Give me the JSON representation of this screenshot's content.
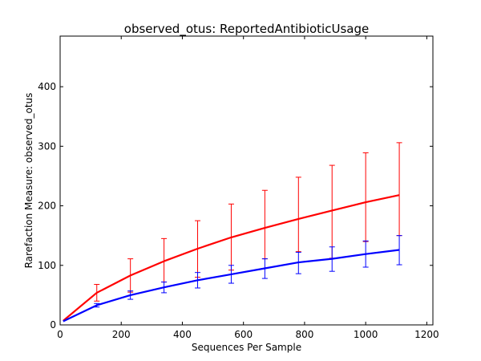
{
  "chart_data": {
    "type": "line",
    "title": "observed_otus: ReportedAntibioticUsage",
    "xlabel": "Sequences Per Sample",
    "ylabel": "Rarefaction Measure: observed_otus",
    "xlim": [
      0,
      1220
    ],
    "ylim": [
      0,
      485
    ],
    "xticks": [
      0,
      200,
      400,
      600,
      800,
      1000,
      1200
    ],
    "yticks": [
      0,
      100,
      200,
      300,
      400
    ],
    "x": [
      10,
      120,
      230,
      340,
      450,
      560,
      670,
      780,
      890,
      1000,
      1110
    ],
    "series": [
      {
        "color": "#ff0000",
        "values": [
          7,
          54,
          83,
          107,
          128,
          147,
          163,
          178,
          192,
          206,
          218
        ],
        "err_low": [
          7,
          40,
          55,
          72,
          80,
          92,
          111,
          123,
          112,
          140,
          150
        ],
        "err_high": [
          7,
          68,
          111,
          145,
          175,
          203,
          226,
          248,
          268,
          289,
          306
        ]
      },
      {
        "color": "#0000ff",
        "values": [
          6,
          33,
          50,
          63,
          75,
          85,
          95,
          105,
          111,
          119,
          126
        ],
        "err_low": [
          6,
          30,
          43,
          54,
          62,
          70,
          78,
          86,
          90,
          97,
          101
        ],
        "err_high": [
          6,
          36,
          57,
          72,
          88,
          100,
          111,
          122,
          131,
          141,
          150
        ]
      }
    ],
    "grid": false
  }
}
